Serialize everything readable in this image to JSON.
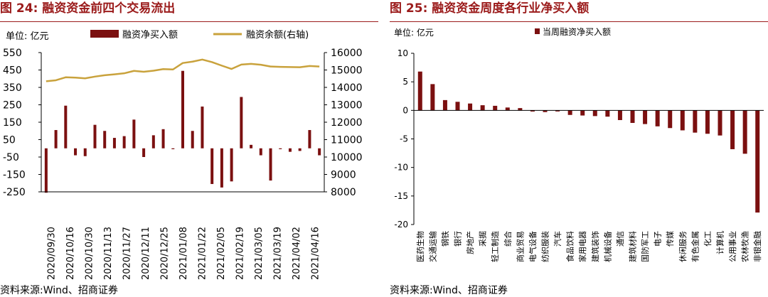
{
  "left": {
    "title": "图 24:  融资资金前四个交易流出",
    "unit_label": "单位:  亿元",
    "source": "资料来源:Wind、招商证券",
    "colors": {
      "bar": "#7b1010",
      "line": "#c9a23c"
    },
    "chart_data": {
      "type": "bar+line",
      "legend": [
        "融资净买入额",
        "融资余额(右轴)"
      ],
      "legend_position": "top",
      "grid": false,
      "y_left": {
        "range": [
          -250,
          550
        ],
        "ticks": [
          "550",
          "450",
          "350",
          "250",
          "150",
          "50",
          "-50",
          "-150",
          "-250"
        ]
      },
      "y_right": {
        "range": [
          8000,
          16000
        ],
        "ticks": [
          "16000",
          "15000",
          "14000",
          "13000",
          "12000",
          "11000",
          "10000",
          "9000",
          "8000"
        ]
      },
      "x_labels": [
        "2020/09/30",
        "2020/10/16",
        "2020/10/30",
        "2020/11/13",
        "2020/11/27",
        "2020/12/11",
        "2020/12/25",
        "2021/01/08",
        "2021/01/22",
        "2021/02/05",
        "2021/02/19",
        "2021/03/05",
        "2021/03/19",
        "2021/04/02",
        "2021/04/16"
      ],
      "series": [
        {
          "name": "融资净买入额",
          "type": "bar",
          "axis": "left",
          "values": [
            -255,
            105,
            245,
            -40,
            -45,
            135,
            100,
            60,
            70,
            165,
            -50,
            75,
            110,
            -5,
            445,
            100,
            240,
            -205,
            -225,
            -190,
            295,
            20,
            -40,
            -185,
            0,
            -20,
            -15,
            105,
            -40
          ]
        },
        {
          "name": "融资余额(右轴)",
          "type": "line",
          "axis": "right",
          "values": [
            14350,
            14410,
            14580,
            14560,
            14520,
            14620,
            14700,
            14750,
            14810,
            14950,
            14900,
            14960,
            15050,
            15030,
            15400,
            15480,
            15600,
            15450,
            15250,
            15060,
            15310,
            15350,
            15300,
            15200,
            15180,
            15170,
            15160,
            15230,
            15200
          ]
        }
      ]
    }
  },
  "right": {
    "title": "图 25:  融资资金周度各行业净买入额",
    "unit_label": "单位:  亿元",
    "source": "资料来源:Wind、招商证券",
    "colors": {
      "bar": "#7b1010"
    },
    "chart_data": {
      "type": "bar",
      "legend": [
        "当周融资净买入额"
      ],
      "legend_position": "top",
      "grid": false,
      "ylim": [
        -20,
        10
      ],
      "y_ticks": [
        "10",
        "5",
        "0",
        "-5",
        "-10",
        "-15",
        "-20"
      ],
      "categories": [
        "医药生物",
        "交通运输",
        "钢铁",
        "银行",
        "房地产",
        "采掘",
        "轻工制造",
        "综合",
        "商业贸易",
        "电气设备",
        "纺织服装",
        "汽车",
        "食品饮料",
        "家用电器",
        "建筑装饰",
        "机械设备",
        "通信",
        "建筑材料",
        "国防军工",
        "电子",
        "传媒",
        "休闲服务",
        "有色金属",
        "化工",
        "计算机",
        "公用事业",
        "农林牧渔",
        "非银金融"
      ],
      "values": [
        6.8,
        4.6,
        1.8,
        1.5,
        1.2,
        0.9,
        0.8,
        0.5,
        0.4,
        -0.2,
        -0.3,
        0,
        -0.8,
        -0.9,
        -1.0,
        -1.1,
        -1.7,
        -2.2,
        -2.4,
        -2.8,
        -3.1,
        -3.5,
        -3.9,
        -4.1,
        -4.4,
        -6.8,
        -7.6,
        -17.9
      ]
    }
  }
}
